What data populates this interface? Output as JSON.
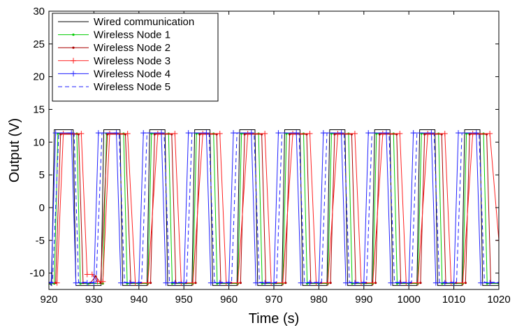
{
  "chart_data": {
    "type": "line",
    "xlabel": "Time (s)",
    "ylabel": "Output (V)",
    "xlim": [
      920,
      1020
    ],
    "ylim": [
      -12.5,
      30
    ],
    "xticks": [
      920,
      930,
      940,
      950,
      960,
      970,
      980,
      990,
      1000,
      1010,
      1020
    ],
    "yticks": [
      -10,
      -5,
      0,
      5,
      10,
      15,
      20,
      25,
      30
    ],
    "grid": false,
    "legend_position": "top-left",
    "series": [
      {
        "name": "Wired communication",
        "color": "#000000",
        "style": "solid",
        "marker": "none",
        "x": [
          920,
          920.6,
          921.2,
          925.4,
          926.0,
          927.7,
          928.4,
          931.6,
          932.2,
          935.8,
          936.4,
          937.9,
          938.6,
          941.8,
          942.4,
          945.8,
          946.4,
          947.9,
          948.6,
          951.8,
          952.4,
          955.8,
          956.4,
          957.9,
          958.6,
          961.8,
          962.4,
          965.8,
          966.4,
          967.9,
          968.6,
          971.8,
          972.4,
          975.8,
          976.4,
          977.9,
          978.6,
          981.8,
          982.4,
          985.8,
          986.4,
          987.9,
          988.6,
          991.8,
          992.4,
          995.8,
          996.4,
          997.9,
          998.6,
          1001.8,
          1002.4,
          1005.8,
          1006.4,
          1007.9,
          1008.6,
          1011.8,
          1012.4,
          1015.8,
          1016.4,
          1017.9,
          1018.6,
          1020
        ],
        "y": [
          -11.5,
          -11.9,
          11.9,
          11.9,
          -11.9,
          -11.9,
          -11.9,
          -11.9,
          11.9,
          11.9,
          -11.9,
          -11.9,
          -11.9,
          -11.9,
          11.9,
          11.9,
          -11.9,
          -11.9,
          -11.9,
          -11.9,
          11.9,
          11.9,
          -11.9,
          -11.9,
          -11.9,
          -11.9,
          11.9,
          11.9,
          -11.9,
          -11.9,
          -11.9,
          -11.9,
          11.9,
          11.9,
          -11.9,
          -11.9,
          -11.9,
          -11.9,
          11.9,
          11.9,
          -11.9,
          -11.9,
          -11.9,
          -11.9,
          11.9,
          11.9,
          -11.9,
          -11.9,
          -11.9,
          -11.9,
          11.9,
          11.9,
          -11.9,
          -11.9,
          -11.9,
          -11.9,
          11.9,
          11.9,
          -11.9,
          -11.9,
          -11.9,
          -11.9
        ]
      },
      {
        "name": "Wireless Node 1",
        "color": "#00cc00",
        "style": "solid",
        "marker": "dot",
        "x": [
          920,
          921.2,
          922.0,
          926.2,
          927.0,
          928.8,
          932.0,
          932.8,
          936.6,
          937.4,
          940.0,
          942.0,
          942.8,
          946.6,
          947.4,
          950.0,
          952.0,
          952.8,
          956.6,
          957.4,
          960.0,
          962.0,
          962.8,
          966.6,
          967.4,
          970.0,
          972.0,
          972.8,
          976.6,
          977.4,
          980.0,
          982.0,
          982.8,
          986.6,
          987.4,
          990.0,
          992.0,
          992.8,
          996.6,
          997.4,
          1000.0,
          1002.0,
          1002.8,
          1006.6,
          1007.4,
          1010.0,
          1012.0,
          1012.8,
          1016.6,
          1017.4,
          1020
        ],
        "y": [
          -11.6,
          -11.6,
          11.3,
          11.3,
          -11.6,
          -11.6,
          -11.6,
          11.3,
          11.3,
          -11.6,
          -11.6,
          -11.6,
          11.3,
          11.3,
          -11.6,
          -11.6,
          -11.6,
          11.3,
          11.3,
          -11.6,
          -11.6,
          -11.6,
          11.3,
          11.3,
          -11.6,
          -11.6,
          -11.6,
          11.3,
          11.3,
          -11.6,
          -11.6,
          -11.6,
          11.3,
          11.3,
          -11.6,
          -11.6,
          -11.6,
          11.3,
          11.3,
          -11.6,
          -11.6,
          -11.6,
          11.3,
          11.3,
          -11.6,
          -11.6,
          -11.6,
          11.3,
          11.3,
          -11.6,
          -11.6
        ]
      },
      {
        "name": "Wireless Node 2",
        "color": "#aa0000",
        "style": "solid",
        "marker": "dot",
        "x": [
          920,
          921.5,
          922.6,
          926.6,
          927.6,
          929.2,
          930.4,
          931.5,
          933.0,
          937.0,
          938.2,
          940.5,
          942.6,
          943.5,
          947.3,
          948.2,
          950.5,
          952.6,
          953.5,
          957.3,
          958.2,
          960.5,
          962.6,
          963.5,
          967.3,
          968.2,
          970.5,
          972.6,
          973.5,
          977.3,
          978.2,
          980.5,
          982.6,
          983.5,
          987.3,
          988.2,
          990.5,
          992.6,
          993.5,
          997.3,
          998.2,
          1000.5,
          1002.6,
          1003.5,
          1007.3,
          1008.2,
          1010.5,
          1012.6,
          1013.5,
          1017.3,
          1018.2,
          1020
        ],
        "y": [
          -11.5,
          -11.5,
          11.2,
          11.2,
          -11.5,
          -11.5,
          -10.5,
          -11.5,
          11.2,
          11.2,
          -11.5,
          -11.5,
          -11.5,
          11.2,
          11.2,
          -11.5,
          -11.5,
          -11.5,
          11.2,
          11.2,
          -11.5,
          -11.5,
          -11.5,
          11.2,
          11.2,
          -11.5,
          -11.5,
          -11.5,
          11.2,
          11.2,
          -11.5,
          -11.5,
          -11.5,
          11.2,
          11.2,
          -11.5,
          -11.5,
          -11.5,
          11.2,
          11.2,
          -11.5,
          -11.5,
          -11.5,
          11.2,
          11.2,
          -11.5,
          -11.5,
          -11.5,
          11.2,
          11.2,
          -11.5,
          -11.5
        ]
      },
      {
        "name": "Wireless Node 3",
        "color": "#ff2020",
        "style": "solid",
        "marker": "plus",
        "x": [
          920,
          921.8,
          923.2,
          927.2,
          928.5,
          929.6,
          930.8,
          932.0,
          933.5,
          937.5,
          939.2,
          942.0,
          944.2,
          948.0,
          949.4,
          952.0,
          954.2,
          958.0,
          959.4,
          962.0,
          964.2,
          968.0,
          969.4,
          972.0,
          974.2,
          978.0,
          979.4,
          982.0,
          984.2,
          988.0,
          989.4,
          992.0,
          994.2,
          998.0,
          999.4,
          1002.0,
          1004.2,
          1008.0,
          1009.4,
          1012.0,
          1014.2,
          1018.0,
          1020
        ],
        "y": [
          -11.5,
          -11.5,
          11.3,
          11.3,
          -10.2,
          -10.2,
          -11.3,
          -11.3,
          11.3,
          11.3,
          -11.5,
          -11.5,
          11.3,
          11.3,
          -11.5,
          -11.5,
          11.3,
          11.3,
          -11.5,
          -11.5,
          11.3,
          11.3,
          -11.5,
          -11.5,
          11.3,
          11.3,
          -11.5,
          -11.5,
          11.3,
          11.3,
          -11.5,
          -11.5,
          11.3,
          11.3,
          -11.5,
          -11.5,
          11.3,
          11.3,
          -11.5,
          -11.5,
          11.3,
          11.3,
          -5
        ]
      },
      {
        "name": "Wireless Node 4",
        "color": "#2020ff",
        "style": "solid",
        "marker": "plus",
        "x": [
          920,
          920.5,
          921.5,
          925.0,
          926.0,
          928.5,
          930.0,
          931.0,
          935.0,
          936.0,
          938.0,
          940.0,
          941.0,
          945.0,
          946.0,
          948.0,
          950.0,
          951.0,
          955.0,
          956.0,
          958.0,
          960.0,
          961.0,
          965.0,
          966.0,
          968.0,
          970.0,
          971.0,
          975.0,
          976.0,
          978.0,
          980.0,
          981.0,
          985.0,
          986.0,
          988.0,
          990.0,
          991.0,
          995.0,
          996.0,
          998.0,
          1000.0,
          1001.0,
          1005.0,
          1006.0,
          1008.0,
          1010.0,
          1011.0,
          1015.0,
          1016.0,
          1018.0,
          1020
        ],
        "y": [
          -11.5,
          -11.5,
          11.4,
          11.4,
          -11.5,
          -11.5,
          -11.5,
          11.4,
          11.4,
          -11.5,
          -11.5,
          -11.5,
          11.4,
          11.4,
          -11.5,
          -11.5,
          -11.5,
          11.4,
          11.4,
          -11.5,
          -11.5,
          -11.5,
          11.4,
          11.4,
          -11.5,
          -11.5,
          -11.5,
          11.4,
          11.4,
          -11.5,
          -11.5,
          -11.5,
          11.4,
          11.4,
          -11.5,
          -11.5,
          -11.5,
          11.4,
          11.4,
          -11.5,
          -11.5,
          -11.5,
          11.4,
          11.4,
          -11.5,
          -11.5,
          -11.5,
          11.4,
          11.4,
          -11.5,
          -11.5,
          -11.5
        ]
      },
      {
        "name": "Wireless Node 5",
        "color": "#2020ff",
        "style": "dashed",
        "marker": "none",
        "x": [
          920,
          920.8,
          922.2,
          925.6,
          926.6,
          929.0,
          930.5,
          931.8,
          935.6,
          936.8,
          938.5,
          940.6,
          941.8,
          945.6,
          946.8,
          948.5,
          950.6,
          951.8,
          955.6,
          956.8,
          958.5,
          960.6,
          961.8,
          965.6,
          966.8,
          968.5,
          970.6,
          971.8,
          975.6,
          976.8,
          978.5,
          980.6,
          981.8,
          985.6,
          986.8,
          988.5,
          990.6,
          991.8,
          995.6,
          996.8,
          998.5,
          1000.6,
          1001.8,
          1005.6,
          1006.8,
          1008.5,
          1010.6,
          1011.8,
          1015.6,
          1016.8,
          1018.5,
          1020
        ],
        "y": [
          -11.4,
          -11.4,
          11.4,
          11.4,
          -11.4,
          -11.4,
          -11.4,
          11.4,
          11.4,
          -11.4,
          -11.4,
          -11.4,
          11.4,
          11.4,
          -11.4,
          -11.4,
          -11.4,
          11.4,
          11.4,
          -11.4,
          -11.4,
          -11.4,
          11.4,
          11.4,
          -11.4,
          -11.4,
          -11.4,
          11.4,
          11.4,
          -11.4,
          -11.4,
          -11.4,
          11.4,
          11.4,
          -11.4,
          -11.4,
          -11.4,
          11.4,
          11.4,
          -11.4,
          -11.4,
          -11.4,
          11.4,
          11.4,
          -11.4,
          -11.4,
          -11.4,
          11.4,
          11.4,
          -11.4,
          -11.4,
          -11.4
        ]
      }
    ]
  }
}
